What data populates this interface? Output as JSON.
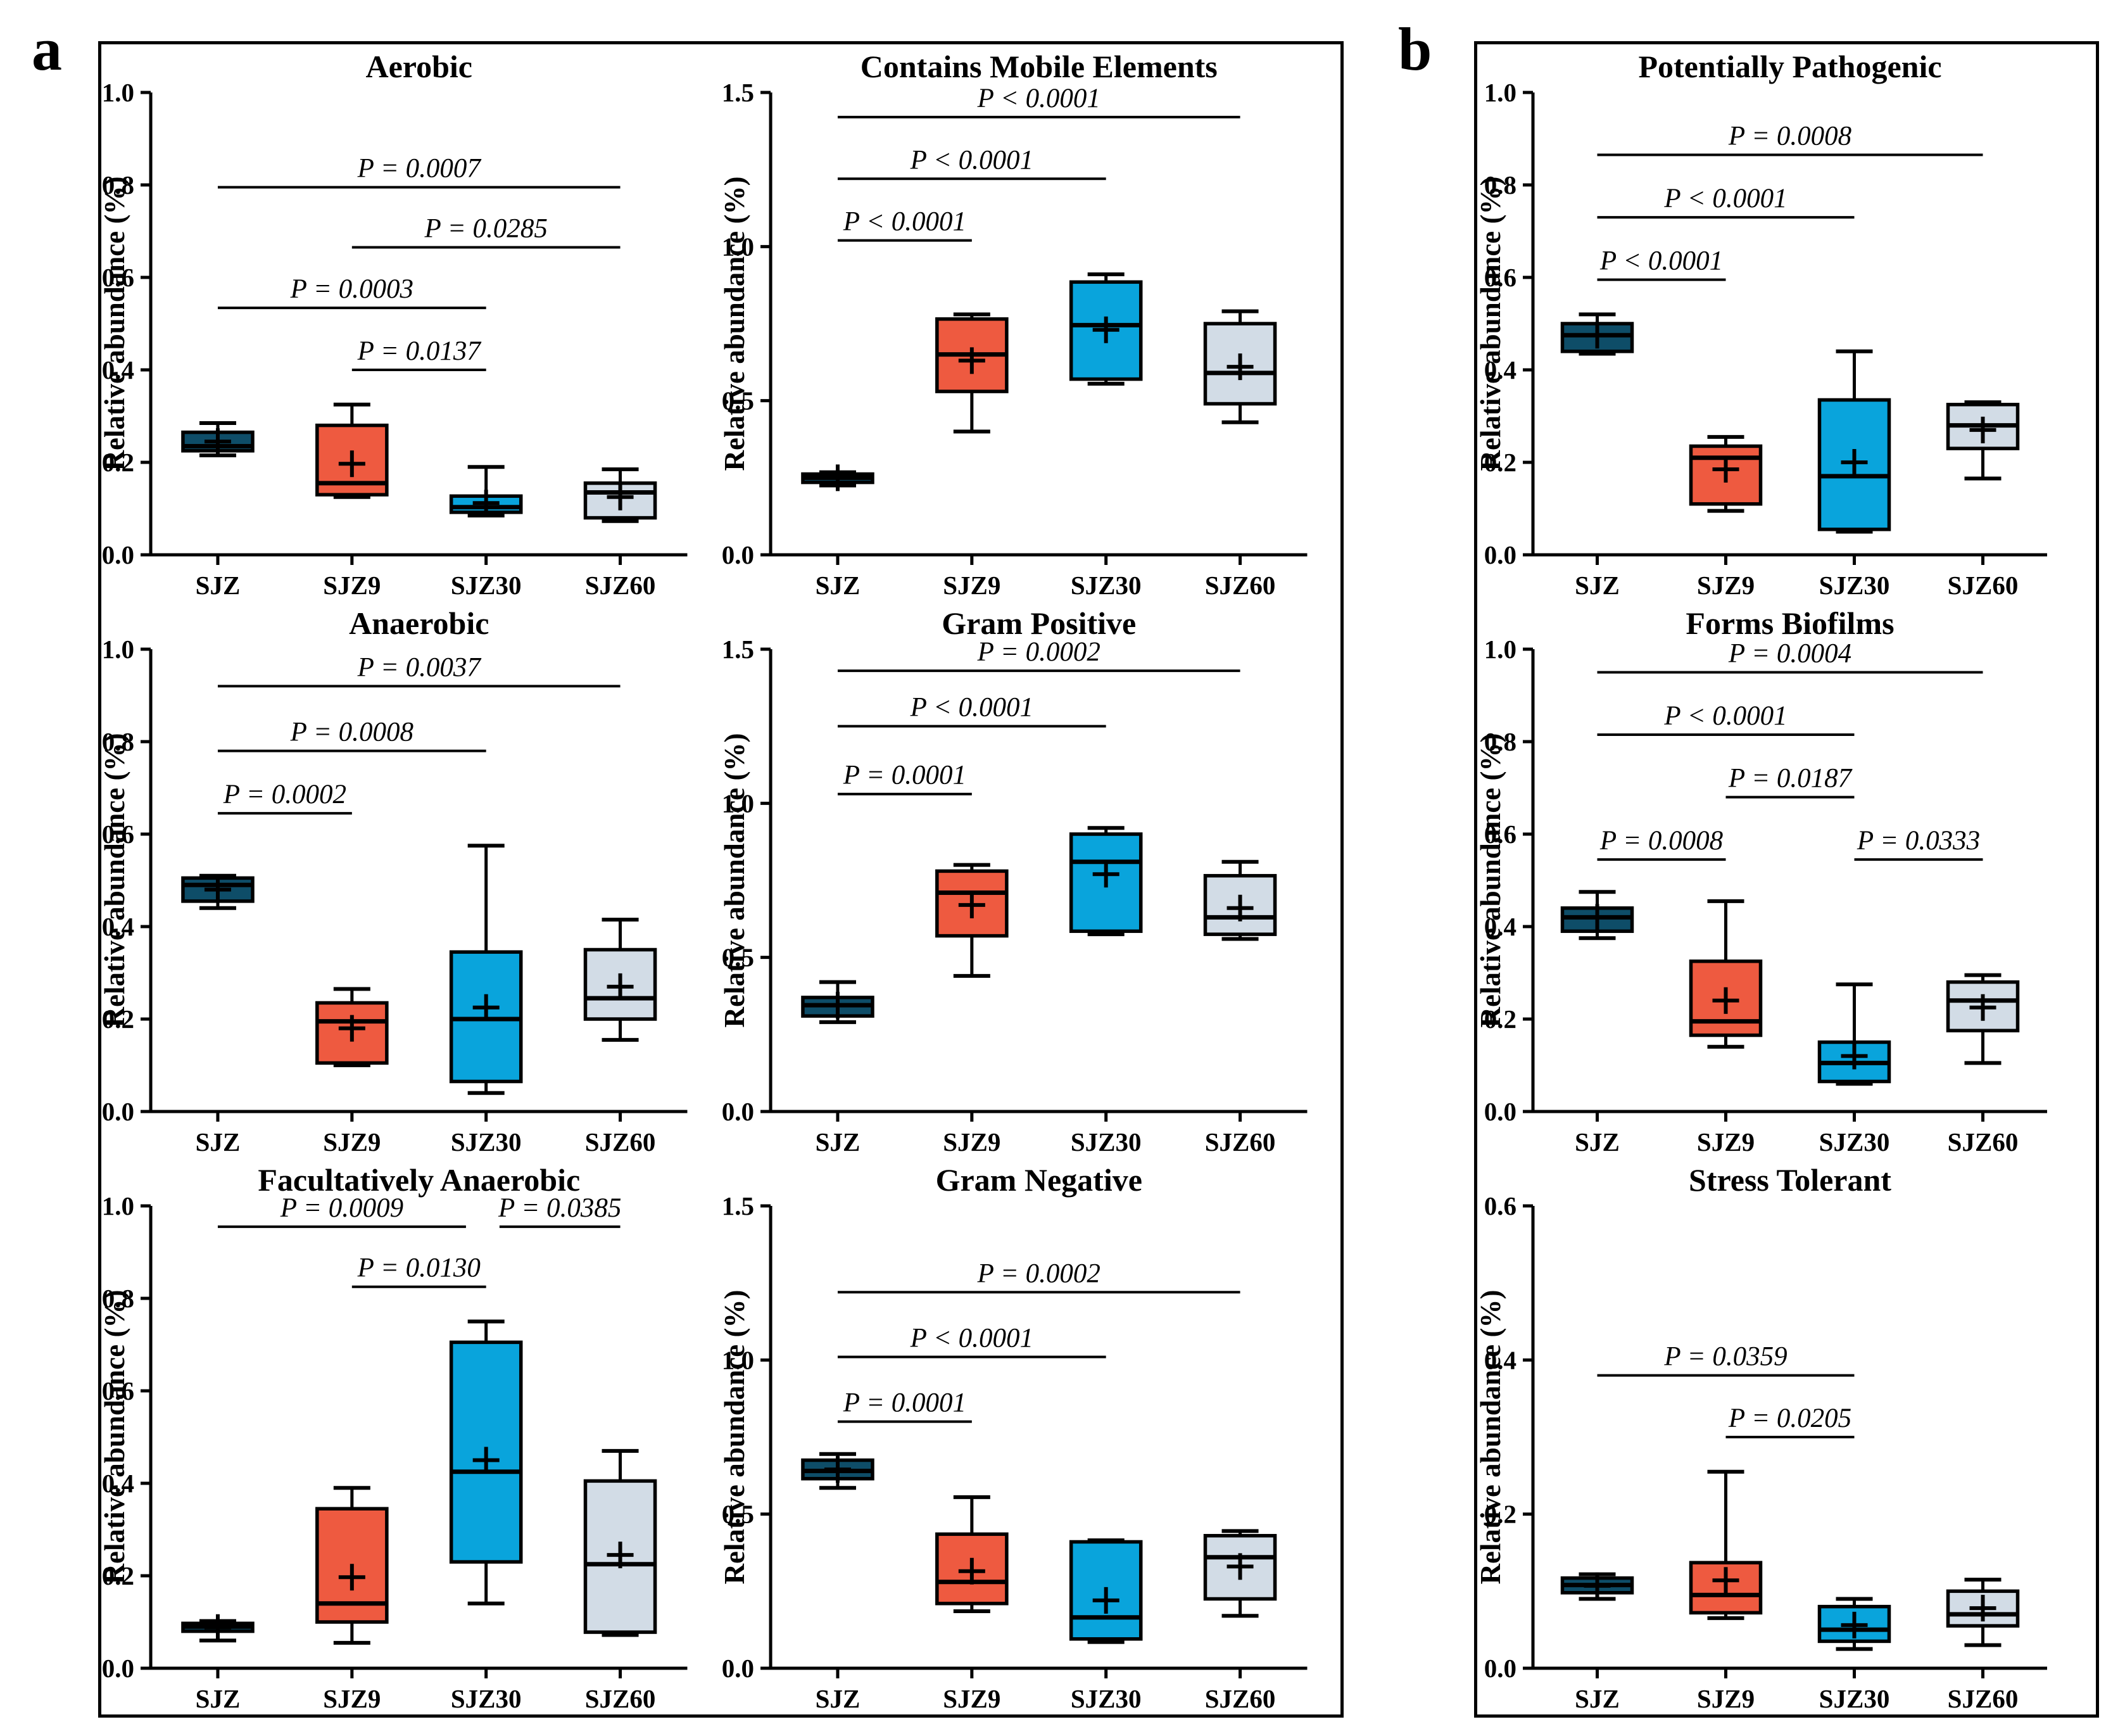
{
  "figure": {
    "panel_a_label": "a",
    "panel_b_label": "b",
    "ylabel": "Relative abundance (%)",
    "categories": [
      "SJZ",
      "SJZ9",
      "SJZ30",
      "SJZ60"
    ],
    "colors": {
      "SJZ": "#0E4D68",
      "SJZ9": "#EE5A40",
      "SJZ30": "#09A4DC",
      "SJZ60": "#D2DCE6"
    },
    "axis_color": "#000000",
    "background_color": "#ffffff"
  },
  "chart_data": [
    {
      "type": "box",
      "panel": "a",
      "title": "Aerobic",
      "ylabel": "Relative abundance (%)",
      "ylim": [
        0,
        1.0
      ],
      "yticks": [
        "0.0",
        "0.2",
        "0.4",
        "0.6",
        "0.8",
        "1.0"
      ],
      "categories": [
        "SJZ",
        "SJZ9",
        "SJZ30",
        "SJZ60"
      ],
      "boxes": [
        {
          "group": "SJZ",
          "whisker_low": 0.215,
          "q1": 0.225,
          "median": 0.235,
          "q3": 0.265,
          "whisker_high": 0.285,
          "mean": 0.245
        },
        {
          "group": "SJZ9",
          "whisker_low": 0.125,
          "q1": 0.13,
          "median": 0.155,
          "q3": 0.28,
          "whisker_high": 0.325,
          "mean": 0.197
        },
        {
          "group": "SJZ30",
          "whisker_low": 0.085,
          "q1": 0.092,
          "median": 0.103,
          "q3": 0.127,
          "whisker_high": 0.19,
          "mean": 0.112
        },
        {
          "group": "SJZ60",
          "whisker_low": 0.073,
          "q1": 0.08,
          "median": 0.135,
          "q3": 0.155,
          "whisker_high": 0.185,
          "mean": 0.125
        }
      ],
      "pvalues": [
        {
          "label": "P = 0.0007",
          "from": "SJZ",
          "to": "SJZ60",
          "y": 0.795
        },
        {
          "label": "P = 0.0285",
          "from": "SJZ9",
          "to": "SJZ60",
          "y": 0.665
        },
        {
          "label": "P = 0.0003",
          "from": "SJZ",
          "to": "SJZ30",
          "y": 0.534
        },
        {
          "label": "P = 0.0137",
          "from": "SJZ9",
          "to": "SJZ30",
          "y": 0.4
        }
      ]
    },
    {
      "type": "box",
      "panel": "a",
      "title": "Contains Mobile Elements",
      "ylabel": "Relative abundance (%)",
      "ylim": [
        0,
        1.5
      ],
      "yticks": [
        "0.0",
        "0.5",
        "1.0",
        "1.5"
      ],
      "categories": [
        "SJZ",
        "SJZ9",
        "SJZ30",
        "SJZ60"
      ],
      "boxes": [
        {
          "group": "SJZ",
          "whisker_low": 0.225,
          "q1": 0.235,
          "median": 0.25,
          "q3": 0.262,
          "whisker_high": 0.268,
          "mean": 0.25
        },
        {
          "group": "SJZ9",
          "whisker_low": 0.4,
          "q1": 0.53,
          "median": 0.65,
          "q3": 0.765,
          "whisker_high": 0.78,
          "mean": 0.63
        },
        {
          "group": "SJZ30",
          "whisker_low": 0.555,
          "q1": 0.57,
          "median": 0.745,
          "q3": 0.885,
          "whisker_high": 0.91,
          "mean": 0.73
        },
        {
          "group": "SJZ60",
          "whisker_low": 0.43,
          "q1": 0.49,
          "median": 0.59,
          "q3": 0.75,
          "whisker_high": 0.79,
          "mean": 0.61
        }
      ],
      "pvalues": [
        {
          "label": "P < 0.0001",
          "from": "SJZ",
          "to": "SJZ60",
          "y": 1.42
        },
        {
          "label": "P < 0.0001",
          "from": "SJZ",
          "to": "SJZ30",
          "y": 1.22
        },
        {
          "label": "P < 0.0001",
          "from": "SJZ",
          "to": "SJZ9",
          "y": 1.02
        }
      ]
    },
    {
      "type": "box",
      "panel": "a",
      "title": "Anaerobic",
      "ylabel": "Relative abundance (%)",
      "ylim": [
        0,
        1.0
      ],
      "yticks": [
        "0.0",
        "0.2",
        "0.4",
        "0.6",
        "0.8",
        "1.0"
      ],
      "categories": [
        "SJZ",
        "SJZ9",
        "SJZ30",
        "SJZ60"
      ],
      "boxes": [
        {
          "group": "SJZ",
          "whisker_low": 0.44,
          "q1": 0.455,
          "median": 0.49,
          "q3": 0.505,
          "whisker_high": 0.51,
          "mean": 0.48
        },
        {
          "group": "SJZ9",
          "whisker_low": 0.1,
          "q1": 0.105,
          "median": 0.195,
          "q3": 0.235,
          "whisker_high": 0.265,
          "mean": 0.18
        },
        {
          "group": "SJZ30",
          "whisker_low": 0.04,
          "q1": 0.065,
          "median": 0.2,
          "q3": 0.345,
          "whisker_high": 0.575,
          "mean": 0.225
        },
        {
          "group": "SJZ60",
          "whisker_low": 0.155,
          "q1": 0.2,
          "median": 0.245,
          "q3": 0.35,
          "whisker_high": 0.415,
          "mean": 0.27
        }
      ],
      "pvalues": [
        {
          "label": "P = 0.0037",
          "from": "SJZ",
          "to": "SJZ60",
          "y": 0.92
        },
        {
          "label": "P = 0.0008",
          "from": "SJZ",
          "to": "SJZ30",
          "y": 0.78
        },
        {
          "label": "P = 0.0002",
          "from": "SJZ",
          "to": "SJZ9",
          "y": 0.645
        }
      ]
    },
    {
      "type": "box",
      "panel": "a",
      "title": "Gram Positive",
      "ylabel": "Relative abundance (%)",
      "ylim": [
        0,
        1.5
      ],
      "yticks": [
        "0.0",
        "0.5",
        "1.0",
        "1.5"
      ],
      "categories": [
        "SJZ",
        "SJZ9",
        "SJZ30",
        "SJZ60"
      ],
      "boxes": [
        {
          "group": "SJZ",
          "whisker_low": 0.29,
          "q1": 0.31,
          "median": 0.345,
          "q3": 0.37,
          "whisker_high": 0.42,
          "mean": 0.345
        },
        {
          "group": "SJZ9",
          "whisker_low": 0.44,
          "q1": 0.57,
          "median": 0.71,
          "q3": 0.78,
          "whisker_high": 0.8,
          "mean": 0.67
        },
        {
          "group": "SJZ30",
          "whisker_low": 0.575,
          "q1": 0.585,
          "median": 0.81,
          "q3": 0.9,
          "whisker_high": 0.92,
          "mean": 0.77
        },
        {
          "group": "SJZ60",
          "whisker_low": 0.56,
          "q1": 0.575,
          "median": 0.63,
          "q3": 0.765,
          "whisker_high": 0.81,
          "mean": 0.66
        }
      ],
      "pvalues": [
        {
          "label": "P = 0.0002",
          "from": "SJZ",
          "to": "SJZ60",
          "y": 1.43
        },
        {
          "label": "P < 0.0001",
          "from": "SJZ",
          "to": "SJZ30",
          "y": 1.25
        },
        {
          "label": "P = 0.0001",
          "from": "SJZ",
          "to": "SJZ9",
          "y": 1.03
        }
      ]
    },
    {
      "type": "box",
      "panel": "a",
      "title": "Facultatively Anaerobic",
      "ylabel": "Relative abundance (%)",
      "ylim": [
        0,
        1.0
      ],
      "yticks": [
        "0.0",
        "0.2",
        "0.4",
        "0.6",
        "0.8",
        "1.0"
      ],
      "categories": [
        "SJZ",
        "SJZ9",
        "SJZ30",
        "SJZ60"
      ],
      "boxes": [
        {
          "group": "SJZ",
          "whisker_low": 0.06,
          "q1": 0.08,
          "median": 0.09,
          "q3": 0.097,
          "whisker_high": 0.102,
          "mean": 0.088
        },
        {
          "group": "SJZ9",
          "whisker_low": 0.055,
          "q1": 0.1,
          "median": 0.14,
          "q3": 0.345,
          "whisker_high": 0.39,
          "mean": 0.197
        },
        {
          "group": "SJZ30",
          "whisker_low": 0.14,
          "q1": 0.23,
          "median": 0.425,
          "q3": 0.705,
          "whisker_high": 0.75,
          "mean": 0.45
        },
        {
          "group": "SJZ60",
          "whisker_low": 0.072,
          "q1": 0.078,
          "median": 0.225,
          "q3": 0.405,
          "whisker_high": 0.47,
          "mean": 0.245
        }
      ],
      "pvalues": [
        {
          "label": "P = 0.0009",
          "from": "SJZ",
          "to": "SJZ30",
          "y": 0.955,
          "trim_to": 0.15
        },
        {
          "label": "P = 0.0385",
          "from": "SJZ30",
          "to": "SJZ60",
          "y": 0.955,
          "trim_from": 0.1
        },
        {
          "label": "P = 0.0130",
          "from": "SJZ9",
          "to": "SJZ30",
          "y": 0.825
        }
      ]
    },
    {
      "type": "box",
      "panel": "a",
      "title": "Gram Negative",
      "ylabel": "Relative abundance (%)",
      "ylim": [
        0,
        1.5
      ],
      "yticks": [
        "0.0",
        "0.5",
        "1.0",
        "1.5"
      ],
      "categories": [
        "SJZ",
        "SJZ9",
        "SJZ30",
        "SJZ60"
      ],
      "boxes": [
        {
          "group": "SJZ",
          "whisker_low": 0.585,
          "q1": 0.615,
          "median": 0.64,
          "q3": 0.675,
          "whisker_high": 0.695,
          "mean": 0.645
        },
        {
          "group": "SJZ9",
          "whisker_low": 0.185,
          "q1": 0.21,
          "median": 0.28,
          "q3": 0.435,
          "whisker_high": 0.555,
          "mean": 0.315
        },
        {
          "group": "SJZ30",
          "whisker_low": 0.085,
          "q1": 0.095,
          "median": 0.165,
          "q3": 0.41,
          "whisker_high": 0.415,
          "mean": 0.22
        },
        {
          "group": "SJZ60",
          "whisker_low": 0.17,
          "q1": 0.225,
          "median": 0.36,
          "q3": 0.43,
          "whisker_high": 0.445,
          "mean": 0.33
        }
      ],
      "pvalues": [
        {
          "label": "P = 0.0002",
          "from": "SJZ",
          "to": "SJZ60",
          "y": 1.22
        },
        {
          "label": "P < 0.0001",
          "from": "SJZ",
          "to": "SJZ30",
          "y": 1.01
        },
        {
          "label": "P = 0.0001",
          "from": "SJZ",
          "to": "SJZ9",
          "y": 0.8
        }
      ]
    },
    {
      "type": "box",
      "panel": "b",
      "title": "Potentially Pathogenic",
      "ylabel": "Relative abundance (%)",
      "ylim": [
        0,
        1.0
      ],
      "yticks": [
        "0.0",
        "0.2",
        "0.4",
        "0.6",
        "0.8",
        "1.0"
      ],
      "categories": [
        "SJZ",
        "SJZ9",
        "SJZ30",
        "SJZ60"
      ],
      "boxes": [
        {
          "group": "SJZ",
          "whisker_low": 0.435,
          "q1": 0.44,
          "median": 0.475,
          "q3": 0.5,
          "whisker_high": 0.52,
          "mean": 0.475
        },
        {
          "group": "SJZ9",
          "whisker_low": 0.095,
          "q1": 0.11,
          "median": 0.21,
          "q3": 0.235,
          "whisker_high": 0.255,
          "mean": 0.185
        },
        {
          "group": "SJZ30",
          "whisker_low": 0.05,
          "q1": 0.055,
          "median": 0.17,
          "q3": 0.335,
          "whisker_high": 0.44,
          "mean": 0.2
        },
        {
          "group": "SJZ60",
          "whisker_low": 0.165,
          "q1": 0.23,
          "median": 0.28,
          "q3": 0.325,
          "whisker_high": 0.33,
          "mean": 0.27
        }
      ],
      "pvalues": [
        {
          "label": "P = 0.0008",
          "from": "SJZ",
          "to": "SJZ60",
          "y": 0.865
        },
        {
          "label": "P < 0.0001",
          "from": "SJZ",
          "to": "SJZ30",
          "y": 0.73
        },
        {
          "label": "P < 0.0001",
          "from": "SJZ",
          "to": "SJZ9",
          "y": 0.595
        }
      ]
    },
    {
      "type": "box",
      "panel": "b",
      "title": "Forms Biofilms",
      "ylabel": "Relative abundance (%)",
      "ylim": [
        0,
        1.0
      ],
      "yticks": [
        "0.0",
        "0.2",
        "0.4",
        "0.6",
        "0.8",
        "1.0"
      ],
      "categories": [
        "SJZ",
        "SJZ9",
        "SJZ30",
        "SJZ60"
      ],
      "boxes": [
        {
          "group": "SJZ",
          "whisker_low": 0.375,
          "q1": 0.39,
          "median": 0.42,
          "q3": 0.44,
          "whisker_high": 0.475,
          "mean": 0.42
        },
        {
          "group": "SJZ9",
          "whisker_low": 0.14,
          "q1": 0.165,
          "median": 0.195,
          "q3": 0.325,
          "whisker_high": 0.455,
          "mean": 0.24
        },
        {
          "group": "SJZ30",
          "whisker_low": 0.06,
          "q1": 0.065,
          "median": 0.105,
          "q3": 0.15,
          "whisker_high": 0.275,
          "mean": 0.12
        },
        {
          "group": "SJZ60",
          "whisker_low": 0.105,
          "q1": 0.175,
          "median": 0.24,
          "q3": 0.28,
          "whisker_high": 0.295,
          "mean": 0.225
        }
      ],
      "pvalues": [
        {
          "label": "P = 0.0004",
          "from": "SJZ",
          "to": "SJZ60",
          "y": 0.95
        },
        {
          "label": "P < 0.0001",
          "from": "SJZ",
          "to": "SJZ30",
          "y": 0.815
        },
        {
          "label": "P = 0.0187",
          "from": "SJZ9",
          "to": "SJZ30",
          "y": 0.68
        },
        {
          "label": "P = 0.0008",
          "from": "SJZ",
          "to": "SJZ9",
          "y": 0.545
        },
        {
          "label": "P = 0.0333",
          "from": "SJZ30",
          "to": "SJZ60",
          "y": 0.545
        }
      ]
    },
    {
      "type": "box",
      "panel": "b",
      "title": "Stress Tolerant",
      "ylabel": "Relative abundance (%)",
      "ylim": [
        0,
        0.6
      ],
      "yticks": [
        "0.0",
        "0.2",
        "0.4",
        "0.6"
      ],
      "categories": [
        "SJZ",
        "SJZ9",
        "SJZ30",
        "SJZ60"
      ],
      "boxes": [
        {
          "group": "SJZ",
          "whisker_low": 0.09,
          "q1": 0.098,
          "median": 0.108,
          "q3": 0.117,
          "whisker_high": 0.122,
          "mean": 0.107
        },
        {
          "group": "SJZ9",
          "whisker_low": 0.065,
          "q1": 0.072,
          "median": 0.095,
          "q3": 0.137,
          "whisker_high": 0.255,
          "mean": 0.114
        },
        {
          "group": "SJZ30",
          "whisker_low": 0.025,
          "q1": 0.035,
          "median": 0.05,
          "q3": 0.08,
          "whisker_high": 0.09,
          "mean": 0.056
        },
        {
          "group": "SJZ60",
          "whisker_low": 0.03,
          "q1": 0.055,
          "median": 0.07,
          "q3": 0.1,
          "whisker_high": 0.115,
          "mean": 0.078
        }
      ],
      "pvalues": [
        {
          "label": "P = 0.0359",
          "from": "SJZ",
          "to": "SJZ30",
          "y": 0.38
        },
        {
          "label": "P = 0.0205",
          "from": "SJZ9",
          "to": "SJZ30",
          "y": 0.3
        }
      ]
    }
  ]
}
